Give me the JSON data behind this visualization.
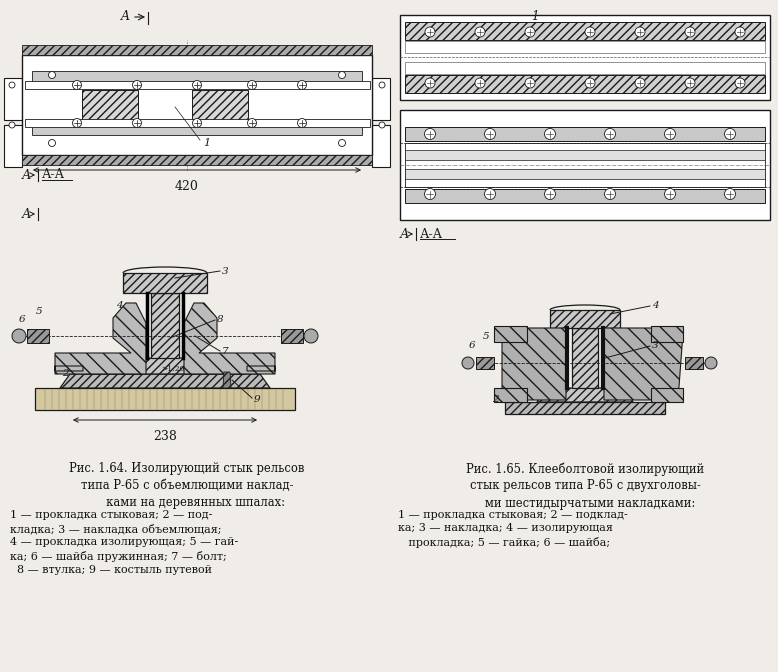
{
  "bg_color": "#f0ede8",
  "fig_width": 7.78,
  "fig_height": 6.72,
  "lc": "#1a1a1a",
  "caption_left_title": "Рис. 1.64. Изолирующий стык рельсов\nтипа Р-65 с объемлющими наклад-\n     ками на деревянных шпалах:",
  "caption_left_items": "1 — прокладка стыковая; 2 — под-\nкладка; 3 — накладка объемлющая;\n4 — прокладка изолирующая; 5 — гай-\nка; 6 — шайба пружинная; 7 — болт;\n  8 — втулка; 9 — костыль путевой",
  "caption_right_title": "Рис. 1.65. Клееболтовой изолирующий\nстык рельсов типа Р-65 с двухголовы-\n   ми шестидырчатыми накладками:",
  "caption_right_items": "1 — прокладка стыковая; 2 — подклад-\nка; 3 — накладка; 4 — изолирующая\n   прокладка; 5 — гайка; 6 — шайба;"
}
